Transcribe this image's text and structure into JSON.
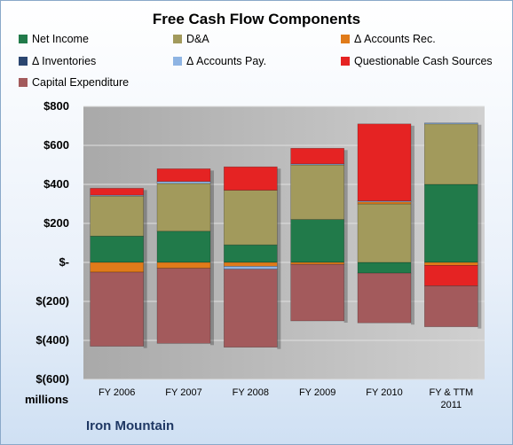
{
  "chart_data": {
    "type": "bar",
    "stacked": true,
    "title": "Free Cash Flow Components",
    "unit_label": "millions",
    "footer": "Iron Mountain",
    "categories": [
      "FY 2006",
      "FY 2007",
      "FY 2008",
      "FY 2009",
      "FY 2010",
      "FY & TTM 2011"
    ],
    "ylim": [
      -600,
      800
    ],
    "yticks": [
      {
        "value": 800,
        "label": "$800"
      },
      {
        "value": 600,
        "label": "$600"
      },
      {
        "value": 400,
        "label": "$400"
      },
      {
        "value": 200,
        "label": "$200"
      },
      {
        "value": 0,
        "label": "$-"
      },
      {
        "value": -200,
        "label": "$(200)"
      },
      {
        "value": -400,
        "label": "$(400)"
      },
      {
        "value": -600,
        "label": "$(600)"
      }
    ],
    "grid": true,
    "legend_placement": "top",
    "series": [
      {
        "name": "Net Income",
        "color": "#217a4a",
        "values": [
          135,
          160,
          90,
          220,
          -55,
          400
        ]
      },
      {
        "name": "D&A",
        "color": "#a29a5c",
        "values": [
          205,
          245,
          280,
          280,
          300,
          310
        ]
      },
      {
        "name": "Δ Accounts Rec.",
        "color": "#e07b1a",
        "values": [
          -50,
          -30,
          -20,
          -10,
          10,
          -15
        ]
      },
      {
        "name": "Δ Inventories",
        "color": "#2b4670",
        "values": [
          0,
          0,
          0,
          0,
          0,
          0
        ]
      },
      {
        "name": "Δ Accounts Pay.",
        "color": "#8eb4e3",
        "values": [
          5,
          10,
          -15,
          5,
          5,
          5
        ]
      },
      {
        "name": "Questionable Cash Sources",
        "color": "#e52323",
        "values": [
          35,
          65,
          120,
          80,
          395,
          -105
        ]
      },
      {
        "name": "Capital Expenditure",
        "color": "#a35a5c",
        "values": [
          -380,
          -385,
          -400,
          -290,
          -255,
          -210
        ]
      }
    ]
  }
}
